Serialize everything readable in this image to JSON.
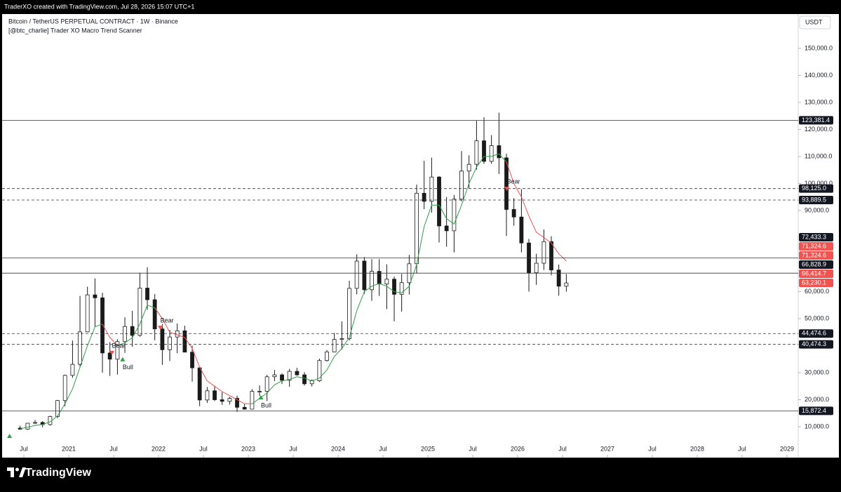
{
  "header": {
    "caption": "TraderXO created with TradingView.com, Jul 28, 2026 15:07 UTC+1"
  },
  "footer": {
    "brand": "TradingView"
  },
  "chart_data": {
    "type": "candlestick",
    "title": "Bitcoin / TetherUS PERPETUAL CONTRACT · 1W · Binance",
    "subtitle": "[@btc_charlie] Trader XO Macro Trend Scanner",
    "y_axis_label": "USDT",
    "up_color": "#ffffff",
    "down_color": "#1a1a1a",
    "wick_color": "#1a1a1a",
    "x": [
      2020.458,
      2020.542,
      2020.625,
      2020.708,
      2020.792,
      2020.875,
      2020.958,
      2021.042,
      2021.125,
      2021.208,
      2021.292,
      2021.375,
      2021.458,
      2021.542,
      2021.625,
      2021.708,
      2021.792,
      2021.875,
      2021.958,
      2022.042,
      2022.125,
      2022.208,
      2022.292,
      2022.375,
      2022.458,
      2022.542,
      2022.625,
      2022.708,
      2022.792,
      2022.875,
      2022.958,
      2023.042,
      2023.125,
      2023.208,
      2023.292,
      2023.375,
      2023.458,
      2023.542,
      2023.625,
      2023.708,
      2023.792,
      2023.875,
      2023.958,
      2024.042,
      2024.125,
      2024.208,
      2024.292,
      2024.375,
      2024.458,
      2024.542,
      2024.625,
      2024.708,
      2024.792,
      2024.875,
      2024.958,
      2025.042,
      2025.125,
      2025.208,
      2025.292,
      2025.375,
      2025.458,
      2025.542,
      2025.625,
      2025.708,
      2025.792,
      2025.875,
      2025.958,
      2026.042,
      2026.125,
      2026.208,
      2026.292,
      2026.375,
      2026.458,
      2026.542
    ],
    "open": [
      9500,
      9100,
      11300,
      11600,
      10800,
      13800,
      19700,
      29000,
      33100,
      45100,
      58800,
      57700,
      37300,
      35000,
      41500,
      47100,
      43800,
      61300,
      57000,
      46200,
      38500,
      43200,
      45500,
      37600,
      31800,
      19900,
      23300,
      20000,
      19400,
      20500,
      17200,
      16500,
      23100,
      23100,
      28500,
      29200,
      27200,
      30500,
      29200,
      25900,
      27000,
      34500,
      37700,
      42300,
      42600,
      61200,
      71300,
      60700,
      67500,
      62800,
      64600,
      59000,
      63300,
      70300,
      96400,
      93400,
      102400,
      84300,
      82500,
      94200,
      104600,
      107100,
      115800,
      108200,
      114000,
      109500,
      90400,
      87600,
      78000,
      67000,
      70500,
      78500,
      68000,
      62000
    ],
    "high": [
      10400,
      11400,
      12500,
      12100,
      14100,
      19900,
      29300,
      41900,
      58400,
      61800,
      64900,
      59600,
      41300,
      42400,
      50500,
      52900,
      67000,
      69000,
      59100,
      48000,
      45800,
      48200,
      47400,
      40000,
      31900,
      24700,
      25200,
      22800,
      21100,
      21500,
      18400,
      23900,
      25300,
      29200,
      31000,
      29800,
      31400,
      31800,
      30200,
      27500,
      35200,
      38400,
      44700,
      49000,
      64000,
      73800,
      72800,
      72000,
      72000,
      70100,
      65600,
      66500,
      73600,
      99600,
      108400,
      109600,
      102700,
      95000,
      95800,
      112000,
      110400,
      123200,
      124500,
      117900,
      126200,
      111000,
      94600,
      97900,
      79500,
      74000,
      83000,
      80500,
      70000,
      66500
    ],
    "low": [
      8900,
      8900,
      11000,
      9800,
      10400,
      13200,
      17600,
      28100,
      32300,
      45000,
      47000,
      30000,
      28800,
      29300,
      37300,
      39600,
      43300,
      53300,
      42000,
      32900,
      34300,
      37200,
      37600,
      26700,
      17600,
      18800,
      19500,
      18100,
      18200,
      15500,
      16300,
      16500,
      21400,
      19500,
      26900,
      25800,
      24800,
      28900,
      25200,
      24900,
      26600,
      34100,
      37600,
      38600,
      41900,
      59000,
      59200,
      56600,
      58400,
      53500,
      49000,
      52600,
      58900,
      66800,
      90500,
      89200,
      78200,
      76600,
      74500,
      93400,
      98200,
      105100,
      107300,
      107300,
      103500,
      80600,
      84400,
      74500,
      60000,
      62500,
      68000,
      66000,
      58500,
      60000
    ],
    "close": [
      9100,
      11300,
      11600,
      10800,
      13800,
      19700,
      29000,
      33100,
      45100,
      58800,
      57700,
      37300,
      35000,
      41500,
      47100,
      43800,
      61300,
      57000,
      46200,
      38500,
      43200,
      45500,
      37600,
      31800,
      19900,
      23300,
      20000,
      19400,
      20500,
      17200,
      16500,
      23100,
      23100,
      28500,
      29200,
      27200,
      30500,
      29200,
      25900,
      27000,
      34500,
      37700,
      42300,
      42600,
      61200,
      71300,
      60700,
      67500,
      62800,
      64600,
      59000,
      63300,
      70300,
      96400,
      93400,
      102400,
      84300,
      82500,
      94200,
      104600,
      107100,
      115800,
      108200,
      114000,
      109500,
      90400,
      87600,
      78000,
      67000,
      70500,
      78500,
      68000,
      62000,
      63200
    ],
    "lines": [
      {
        "color": "#2e9e44",
        "values": [
          9300,
          9800,
          10500,
          10800,
          11800,
          14000,
          18500,
          24000,
          32000,
          40000,
          47000,
          48000,
          null,
          40000,
          41000,
          43000,
          48000,
          55000,
          54000,
          50000,
          null,
          null,
          null,
          null,
          null,
          null,
          null,
          null,
          null,
          null,
          null,
          18500,
          20500,
          22500,
          25500,
          27000,
          27500,
          28500,
          28000,
          27000,
          28000,
          31000,
          36000,
          39000,
          43000,
          53000,
          60000,
          62000,
          63000,
          62000,
          60000,
          59500,
          62000,
          70000,
          84000,
          92000,
          92000,
          87000,
          85000,
          92000,
          100000,
          106000,
          110000,
          110000,
          111000,
          108000,
          null,
          null,
          null,
          null,
          null,
          null,
          null,
          null
        ]
      },
      {
        "color": "#f05350",
        "values": [
          null,
          null,
          null,
          null,
          null,
          null,
          null,
          null,
          null,
          null,
          null,
          48000,
          43000,
          40000,
          null,
          null,
          null,
          null,
          54000,
          50000,
          45000,
          44000,
          43000,
          39000,
          32000,
          27000,
          25000,
          23000,
          21500,
          20000,
          18500,
          18500,
          null,
          null,
          null,
          null,
          null,
          null,
          null,
          null,
          null,
          null,
          null,
          null,
          null,
          null,
          null,
          null,
          null,
          null,
          null,
          null,
          null,
          null,
          null,
          null,
          null,
          null,
          null,
          null,
          null,
          null,
          null,
          null,
          null,
          108000,
          100000,
          95000,
          88000,
          82000,
          80000,
          78000,
          74000,
          71324.6
        ]
      }
    ],
    "xlim": [
      2020.234,
      2029.125
    ],
    "xticks": [
      {
        "value": 2020.5,
        "label": "Jul"
      },
      2021,
      {
        "value": 2021.5,
        "label": "Jul"
      },
      2022,
      {
        "value": 2022.5,
        "label": "Jul"
      },
      2023,
      {
        "value": 2023.5,
        "label": "Jul"
      },
      2024,
      {
        "value": 2024.5,
        "label": "Jul"
      },
      2025,
      {
        "value": 2025.5,
        "label": "Jul"
      },
      2026,
      {
        "value": 2026.5,
        "label": "Jul"
      },
      2027,
      {
        "value": 2027.5,
        "label": "Jul"
      },
      2028,
      {
        "value": 2028.5,
        "label": "Jul"
      },
      2029
    ],
    "ylim": [
      -900,
      162700
    ],
    "yticks": [
      {
        "value": 10000,
        "label": "10,000.0"
      },
      {
        "value": 20000,
        "label": "20,000.0"
      },
      {
        "value": 30000,
        "label": "30,000.0"
      },
      {
        "value": 50000,
        "label": "50,000.0"
      },
      {
        "value": 60000,
        "label": "60,000.0"
      },
      {
        "value": 90000,
        "label": "90,000.0"
      },
      {
        "value": 100000,
        "label": "100,000.0"
      },
      {
        "value": 110000,
        "label": "110,000.0"
      },
      {
        "value": 120000,
        "label": "120,000.0"
      },
      {
        "value": 130000,
        "label": "130,000.0"
      },
      {
        "value": 140000,
        "label": "140,000.0"
      },
      {
        "value": 150000,
        "label": "150,000.0"
      }
    ],
    "levels": [
      {
        "value": 123381.4,
        "label": "123,381.4",
        "style": "solid"
      },
      {
        "value": 98125.0,
        "label": "98,125.0",
        "style": "dashed"
      },
      {
        "value": 93889.5,
        "label": "93,889.5",
        "style": "dashed"
      },
      {
        "value": 72433.3,
        "label": "72,433.3",
        "style": "solid"
      },
      {
        "value": 66828.9,
        "label": "66,828.9",
        "style": "solid"
      },
      {
        "value": 44474.6,
        "label": "44,474.6",
        "style": "dashed"
      },
      {
        "value": 40474.3,
        "label": "40,474.3",
        "style": "dashed"
      },
      {
        "value": 15872.4,
        "label": "15,872.4",
        "style": "solid"
      }
    ],
    "price_labels": [
      {
        "value": 71324.6,
        "label": "71,324.6",
        "color": "#f05350"
      },
      {
        "value": 71324.6,
        "label": "71,324.6",
        "color": "#f05350"
      },
      {
        "value": 66414.7,
        "label": "66,414.7",
        "color": "#f05350"
      },
      {
        "value": 63230.1,
        "label": "63,230.1",
        "color": "#f05350"
      }
    ],
    "signals": [
      {
        "x": 2020.34,
        "y": 6600,
        "color": "#2e9e44",
        "direction": "up"
      },
      {
        "x": 2021.48,
        "y": 37300,
        "color": "#f05350",
        "direction": "down",
        "label": "Bear"
      },
      {
        "x": 2021.6,
        "y": 35000,
        "color": "#2e9e44",
        "direction": "up",
        "label": "Bull"
      },
      {
        "x": 2022.02,
        "y": 46600,
        "color": "#f05350",
        "direction": "down",
        "label": "Bear"
      },
      {
        "x": 2023.14,
        "y": 20900,
        "color": "#2e9e44",
        "direction": "up",
        "label": "Bull"
      },
      {
        "x": 2025.88,
        "y": 98000,
        "color": "#f05350",
        "direction": "down",
        "label": "Bear"
      }
    ]
  }
}
